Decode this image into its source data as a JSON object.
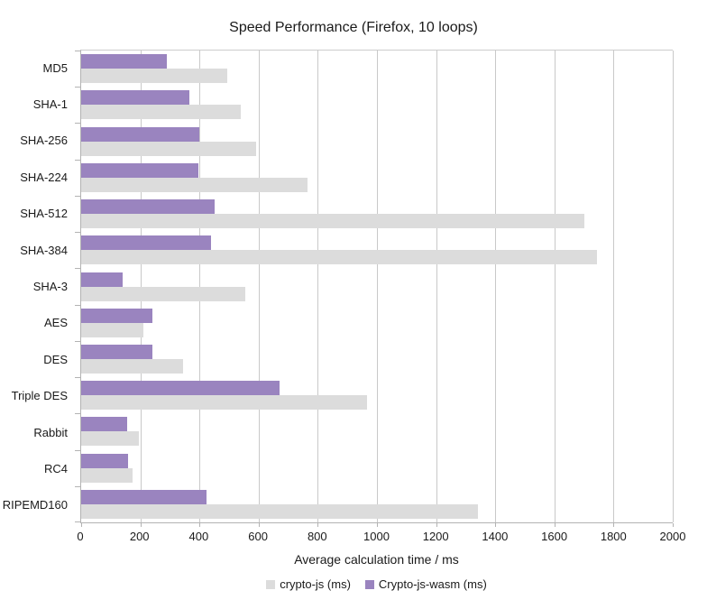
{
  "chart_data": {
    "type": "bar",
    "orientation": "horizontal",
    "title": "Speed Performance (Firefox, 10 loops)",
    "xlabel": "Average calculation time / ms",
    "ylabel": "",
    "xlim": [
      0,
      2000
    ],
    "xtick_step": 200,
    "grid": true,
    "legend_position": "bottom",
    "categories": [
      "MD5",
      "SHA-1",
      "SHA-256",
      "SHA-224",
      "SHA-512",
      "SHA-384",
      "SHA-3",
      "AES",
      "DES",
      "Triple DES",
      "Rabbit",
      "RC4",
      "RIPEMD160"
    ],
    "series": [
      {
        "name": "crypto-js (ms)",
        "color": "#dcdcdc",
        "values": [
          495,
          540,
          590,
          765,
          1700,
          1745,
          555,
          210,
          345,
          965,
          195,
          175,
          1340
        ]
      },
      {
        "name": "Crypto-js-wasm (ms)",
        "color": "#9a84bf",
        "values": [
          290,
          365,
          400,
          395,
          450,
          440,
          140,
          240,
          240,
          670,
          155,
          160,
          425
        ]
      }
    ]
  }
}
